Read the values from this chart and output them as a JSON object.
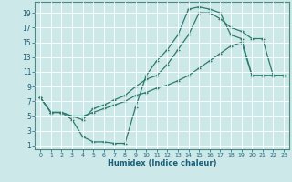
{
  "xlabel": "Humidex (Indice chaleur)",
  "bg_color": "#cce8e8",
  "line_color": "#2e7b6e",
  "grid_color": "#ffffff",
  "xlim": [
    -0.5,
    23.5
  ],
  "ylim": [
    0.5,
    20.5
  ],
  "xticks": [
    0,
    1,
    2,
    3,
    4,
    5,
    6,
    7,
    8,
    9,
    10,
    11,
    12,
    13,
    14,
    15,
    16,
    17,
    18,
    19,
    20,
    21,
    22,
    23
  ],
  "yticks": [
    1,
    3,
    5,
    7,
    9,
    11,
    13,
    15,
    17,
    19
  ],
  "curve1_x": [
    0,
    1,
    2,
    3,
    4,
    5,
    6,
    7,
    8,
    9,
    10,
    11,
    12,
    13,
    14,
    15,
    16,
    17,
    18,
    19,
    20,
    21,
    22,
    23
  ],
  "curve1_y": [
    7.5,
    5.5,
    5.5,
    4.5,
    2.2,
    1.5,
    1.5,
    1.3,
    1.3,
    6.2,
    10.5,
    12.5,
    14.0,
    16.0,
    19.5,
    19.8,
    19.5,
    19.0,
    16.0,
    15.5,
    10.5,
    10.5,
    10.5,
    10.5
  ],
  "curve2_x": [
    0,
    1,
    2,
    3,
    4,
    5,
    6,
    7,
    8,
    9,
    10,
    11,
    12,
    13,
    14,
    15,
    16,
    17,
    18,
    19,
    20,
    21,
    22,
    23
  ],
  "curve2_y": [
    7.5,
    5.5,
    5.5,
    5.0,
    4.5,
    6.0,
    6.5,
    7.2,
    7.8,
    9.0,
    10.0,
    10.5,
    12.0,
    14.0,
    16.0,
    19.0,
    19.0,
    18.2,
    17.0,
    16.5,
    15.5,
    15.5,
    10.5,
    10.5
  ],
  "curve3_x": [
    0,
    1,
    2,
    3,
    4,
    5,
    6,
    7,
    8,
    9,
    10,
    11,
    12,
    13,
    14,
    15,
    16,
    17,
    18,
    19,
    20,
    21,
    22,
    23
  ],
  "curve3_y": [
    7.5,
    5.5,
    5.5,
    5.0,
    5.0,
    5.5,
    6.0,
    6.5,
    7.0,
    7.8,
    8.2,
    8.8,
    9.2,
    9.8,
    10.5,
    11.5,
    12.5,
    13.5,
    14.5,
    15.0,
    10.5,
    10.5,
    10.5,
    10.5
  ]
}
